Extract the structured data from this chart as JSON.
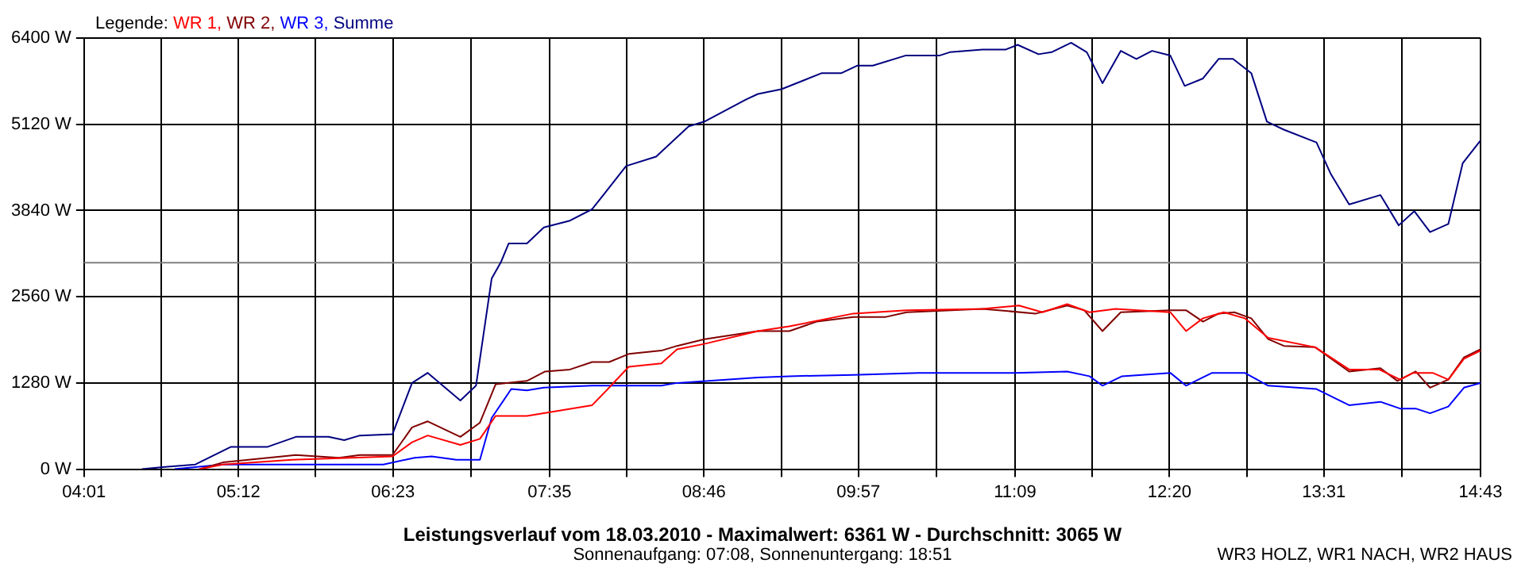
{
  "chart_data": {
    "type": "line",
    "title": "Leistungsverlauf vom 18.03.2010 - Maximalwert: 6361 W - Durchschnitt: 3065 W",
    "subtitle": "Sonnenaufgang: 07:08, Sonnenuntergang: 18:51",
    "annotations": [
      "WR3 HOLZ, WR1 NACH, WR2 HAUS"
    ],
    "legend_title": "Legende:",
    "legend": "top left",
    "grid": true,
    "marker": "none",
    "line_style": "solid",
    "xlim": [
      4.0167,
      14.7167
    ],
    "xticks": [
      {
        "value": 4.0167,
        "label": "04:01"
      },
      {
        "value": 4.6083,
        "label": null
      },
      {
        "value": 5.2,
        "label": "05:12"
      },
      {
        "value": 5.7917,
        "label": null
      },
      {
        "value": 6.3833,
        "label": "06:23"
      },
      {
        "value": 6.9833,
        "label": null
      },
      {
        "value": 7.5833,
        "label": "07:35"
      },
      {
        "value": 8.175,
        "label": null
      },
      {
        "value": 8.7667,
        "label": "08:46"
      },
      {
        "value": 9.3583,
        "label": null
      },
      {
        "value": 9.95,
        "label": "09:57"
      },
      {
        "value": 10.55,
        "label": null
      },
      {
        "value": 11.15,
        "label": "11:09"
      },
      {
        "value": 11.7417,
        "label": null
      },
      {
        "value": 12.3333,
        "label": "12:20"
      },
      {
        "value": 12.925,
        "label": null
      },
      {
        "value": 13.5167,
        "label": "13:31"
      },
      {
        "value": 14.1167,
        "label": null
      },
      {
        "value": 14.7167,
        "label": "14:43"
      }
    ],
    "ylim": [
      0,
      6400
    ],
    "yticks": [
      {
        "value": 0,
        "label": "0 W"
      },
      {
        "value": 1280,
        "label": "1280 W"
      },
      {
        "value": 2560,
        "label": "2560 W"
      },
      {
        "value": 3840,
        "label": "3840 W"
      },
      {
        "value": 5120,
        "label": "5120 W"
      },
      {
        "value": 6400,
        "label": "6400 W"
      }
    ],
    "ref_lines": [
      {
        "axis": "y",
        "value": 3065,
        "color": "#808080"
      }
    ],
    "series": [
      {
        "name": "WR 1,",
        "color": "#ff0000",
        "x": [
          4.9,
          5.08,
          5.61,
          6.38,
          6.53,
          6.65,
          6.9,
          7.05,
          7.17,
          7.41,
          7.91,
          8.03,
          8.19,
          8.44,
          8.56,
          8.77,
          9.18,
          9.42,
          9.91,
          10.32,
          10.9,
          11.18,
          11.36,
          11.55,
          11.72,
          11.92,
          12.34,
          12.46,
          12.59,
          12.75,
          12.91,
          13.09,
          13.45,
          13.71,
          13.94,
          14.1,
          14.2,
          14.35,
          14.47,
          14.59,
          14.7167
        ],
        "values": [
          0,
          70,
          140,
          190,
          400,
          500,
          360,
          450,
          790,
          790,
          950,
          1190,
          1520,
          1570,
          1780,
          1860,
          2050,
          2120,
          2310,
          2360,
          2380,
          2430,
          2330,
          2450,
          2330,
          2380,
          2330,
          2050,
          2240,
          2330,
          2240,
          1950,
          1810,
          1480,
          1480,
          1330,
          1430,
          1430,
          1330,
          1640,
          1760
        ]
      },
      {
        "name": "WR 2,",
        "color": "#800000",
        "x": [
          4.9,
          5.08,
          5.64,
          5.97,
          6.13,
          6.38,
          6.53,
          6.65,
          6.9,
          7.05,
          7.17,
          7.41,
          7.55,
          7.74,
          7.91,
          8.04,
          8.19,
          8.44,
          8.56,
          8.77,
          9.18,
          9.42,
          9.63,
          9.91,
          10.16,
          10.32,
          10.9,
          11.31,
          11.55,
          11.68,
          11.82,
          11.96,
          12.34,
          12.46,
          12.59,
          12.71,
          12.83,
          12.96,
          13.09,
          13.21,
          13.45,
          13.71,
          13.95,
          14.08,
          14.22,
          14.33,
          14.47,
          14.59,
          14.7167
        ],
        "values": [
          0,
          100,
          210,
          170,
          210,
          210,
          620,
          710,
          480,
          690,
          1260,
          1310,
          1450,
          1480,
          1590,
          1590,
          1710,
          1760,
          1830,
          1930,
          2050,
          2050,
          2190,
          2260,
          2260,
          2330,
          2380,
          2310,
          2430,
          2360,
          2050,
          2330,
          2360,
          2360,
          2190,
          2310,
          2330,
          2240,
          1930,
          1830,
          1810,
          1450,
          1500,
          1310,
          1450,
          1210,
          1330,
          1660,
          1780
        ]
      },
      {
        "name": "WR 3,",
        "color": "#0000ff",
        "x": [
          4.71,
          5.08,
          6.31,
          6.55,
          6.68,
          6.87,
          7.05,
          7.14,
          7.29,
          7.41,
          7.54,
          7.91,
          8.44,
          8.56,
          9.18,
          9.42,
          9.91,
          10.41,
          11.15,
          11.55,
          11.72,
          11.82,
          11.97,
          12.34,
          12.46,
          12.66,
          12.91,
          13.09,
          13.46,
          13.71,
          13.95,
          14.1,
          14.22,
          14.33,
          14.47,
          14.59,
          14.7167
        ],
        "values": [
          0,
          70,
          70,
          170,
          190,
          140,
          140,
          760,
          1190,
          1170,
          1210,
          1240,
          1240,
          1280,
          1360,
          1380,
          1400,
          1430,
          1430,
          1450,
          1380,
          1240,
          1380,
          1430,
          1240,
          1430,
          1430,
          1240,
          1190,
          950,
          1000,
          900,
          900,
          830,
          930,
          1210,
          1280
        ]
      },
      {
        "name": "Summe",
        "color": "#000080",
        "x": [
          4.46,
          4.62,
          4.87,
          5.14,
          5.42,
          5.64,
          5.89,
          6.01,
          6.13,
          6.38,
          6.53,
          6.65,
          6.9,
          7.02,
          7.14,
          7.21,
          7.27,
          7.41,
          7.54,
          7.74,
          7.91,
          8.17,
          8.4,
          8.65,
          8.77,
          9.09,
          9.18,
          9.36,
          9.67,
          9.82,
          9.94,
          10.06,
          10.31,
          10.57,
          10.65,
          10.9,
          11.08,
          11.17,
          11.33,
          11.43,
          11.58,
          11.7,
          11.82,
          11.96,
          12.08,
          12.2,
          12.34,
          12.45,
          12.59,
          12.71,
          12.82,
          12.96,
          13.08,
          13.21,
          13.46,
          13.57,
          13.71,
          13.95,
          14.09,
          14.21,
          14.33,
          14.47,
          14.58,
          14.7167
        ],
        "values": [
          0,
          30,
          70,
          330,
          330,
          480,
          480,
          430,
          500,
          520,
          1280,
          1430,
          1020,
          1240,
          2830,
          3070,
          3350,
          3350,
          3590,
          3690,
          3860,
          4500,
          4640,
          5090,
          5160,
          5490,
          5570,
          5640,
          5880,
          5880,
          5990,
          5990,
          6140,
          6140,
          6190,
          6230,
          6230,
          6300,
          6160,
          6190,
          6330,
          6190,
          5730,
          6210,
          6090,
          6210,
          6140,
          5690,
          5800,
          6090,
          6090,
          5880,
          5160,
          5040,
          4850,
          4380,
          3930,
          4070,
          3620,
          3830,
          3520,
          3640,
          4540,
          4880
        ]
      }
    ]
  }
}
